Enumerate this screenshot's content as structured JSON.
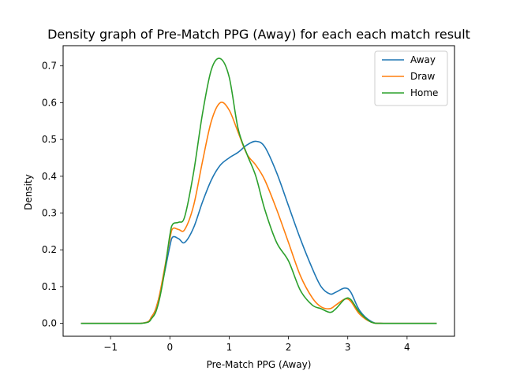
{
  "chart_data": {
    "type": "line",
    "title": "Density graph of Pre-Match PPG (Away) for each each match result",
    "xlabel": "Pre-Match PPG (Away)",
    "ylabel": "Density",
    "xlim": [
      -1.8,
      4.8
    ],
    "ylim": [
      -0.035,
      0.755
    ],
    "xticks": [
      -1,
      0,
      1,
      2,
      3,
      4
    ],
    "xtick_labels": [
      "−1",
      "0",
      "1",
      "2",
      "3",
      "4"
    ],
    "yticks": [
      0.0,
      0.1,
      0.2,
      0.3,
      0.4,
      0.5,
      0.6,
      0.7
    ],
    "ytick_labels": [
      "0.0",
      "0.1",
      "0.2",
      "0.3",
      "0.4",
      "0.5",
      "0.6",
      "0.7"
    ],
    "grid": false,
    "legend_position": "top-right",
    "series": [
      {
        "name": "Away",
        "color": "#1f77b4",
        "x": [
          -1.5,
          -0.5,
          -0.3,
          -0.2,
          -0.1,
          0.0,
          0.05,
          0.15,
          0.25,
          0.4,
          0.55,
          0.7,
          0.85,
          1.0,
          1.15,
          1.3,
          1.45,
          1.6,
          1.8,
          2.0,
          2.2,
          2.4,
          2.55,
          2.7,
          2.8,
          2.95,
          3.05,
          3.2,
          3.4,
          3.6,
          4.5
        ],
        "y": [
          0.0,
          0.0,
          0.02,
          0.06,
          0.13,
          0.21,
          0.235,
          0.23,
          0.22,
          0.26,
          0.33,
          0.39,
          0.43,
          0.45,
          0.465,
          0.485,
          0.495,
          0.48,
          0.41,
          0.32,
          0.23,
          0.15,
          0.1,
          0.08,
          0.085,
          0.096,
          0.085,
          0.035,
          0.005,
          0.0,
          0.0
        ]
      },
      {
        "name": "Draw",
        "color": "#ff7f0e",
        "x": [
          -1.5,
          -0.5,
          -0.3,
          -0.2,
          -0.1,
          0.0,
          0.05,
          0.15,
          0.25,
          0.4,
          0.55,
          0.7,
          0.85,
          1.0,
          1.15,
          1.3,
          1.45,
          1.6,
          1.8,
          2.0,
          2.2,
          2.4,
          2.55,
          2.7,
          2.8,
          2.95,
          3.05,
          3.2,
          3.4,
          3.6,
          4.5
        ],
        "y": [
          0.0,
          0.0,
          0.02,
          0.06,
          0.14,
          0.23,
          0.258,
          0.255,
          0.255,
          0.32,
          0.44,
          0.55,
          0.6,
          0.58,
          0.52,
          0.46,
          0.43,
          0.39,
          0.31,
          0.22,
          0.13,
          0.07,
          0.045,
          0.04,
          0.05,
          0.066,
          0.06,
          0.025,
          0.003,
          0.0,
          0.0
        ]
      },
      {
        "name": "Home",
        "color": "#2ca02c",
        "x": [
          -1.5,
          -0.5,
          -0.3,
          -0.2,
          -0.1,
          0.0,
          0.05,
          0.15,
          0.25,
          0.4,
          0.55,
          0.7,
          0.85,
          1.0,
          1.15,
          1.3,
          1.45,
          1.6,
          1.8,
          2.0,
          2.2,
          2.4,
          2.55,
          2.7,
          2.8,
          2.95,
          3.05,
          3.2,
          3.4,
          3.6,
          4.5
        ],
        "y": [
          0.0,
          0.0,
          0.015,
          0.05,
          0.13,
          0.24,
          0.27,
          0.275,
          0.29,
          0.41,
          0.57,
          0.69,
          0.72,
          0.67,
          0.53,
          0.46,
          0.4,
          0.31,
          0.22,
          0.17,
          0.09,
          0.05,
          0.04,
          0.03,
          0.04,
          0.066,
          0.065,
          0.03,
          0.003,
          0.0,
          0.0
        ]
      }
    ]
  }
}
